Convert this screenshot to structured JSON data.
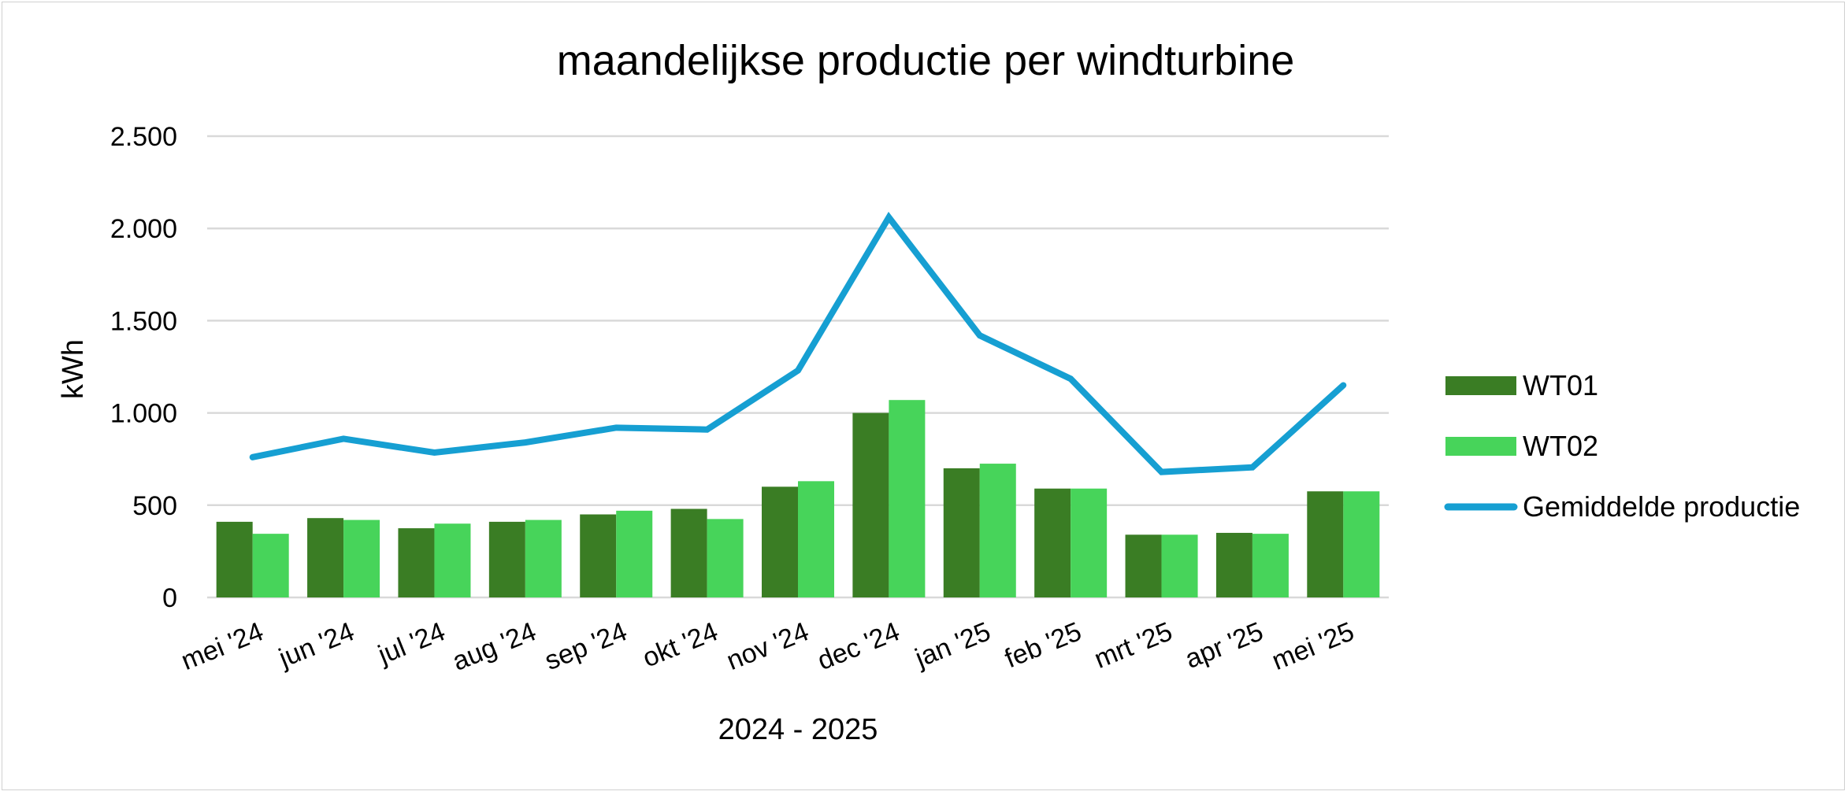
{
  "colors": {
    "wt01": "#3a7d24",
    "wt02": "#47d45a",
    "average": "#169fd2",
    "grid": "#d9d9d9"
  },
  "chart_data": {
    "type": "bar",
    "title": "maandelijkse productie per windturbine",
    "xlabel": "2024 - 2025",
    "ylabel": "kWh",
    "ylim": [
      0,
      2500
    ],
    "yticks": [
      0,
      500,
      1000,
      1500,
      2000,
      2500
    ],
    "ytick_labels": [
      "0",
      "500",
      "1.000",
      "1.500",
      "2.000",
      "2.500"
    ],
    "grid": true,
    "legend_position": "right",
    "categories": [
      "mei '24",
      "jun '24",
      "jul '24",
      "aug '24",
      "sep '24",
      "okt '24",
      "nov '24",
      "dec '24",
      "jan '25",
      "feb '25",
      "mrt '25",
      "apr '25",
      "mei '25"
    ],
    "series": [
      {
        "name": "WT01",
        "type": "bar",
        "color": "#3a7d24",
        "values": [
          410,
          430,
          375,
          410,
          450,
          480,
          600,
          1000,
          700,
          590,
          340,
          350,
          575
        ]
      },
      {
        "name": "WT02",
        "type": "bar",
        "color": "#47d45a",
        "values": [
          345,
          420,
          400,
          420,
          470,
          425,
          630,
          1070,
          725,
          590,
          340,
          345,
          575
        ]
      },
      {
        "name": "Gemiddelde productie",
        "type": "line",
        "color": "#169fd2",
        "values": [
          760,
          860,
          785,
          840,
          920,
          910,
          1230,
          2060,
          1420,
          1185,
          680,
          705,
          1150
        ]
      }
    ]
  }
}
